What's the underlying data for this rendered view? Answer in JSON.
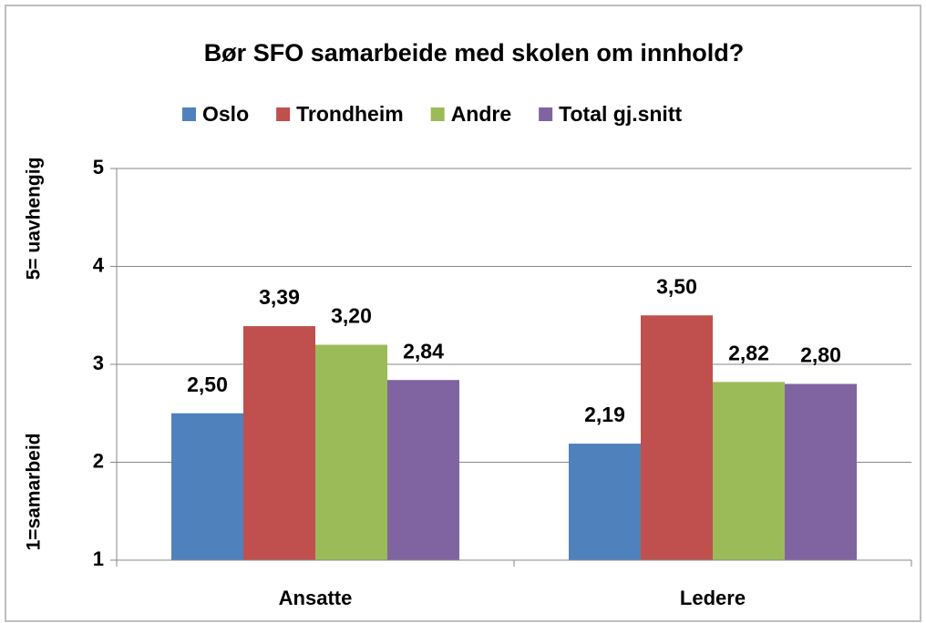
{
  "chart_data": {
    "type": "bar",
    "title": "Bør SFO samarbeide med skolen om innhold?",
    "ylabel_top": "5= uavhengig",
    "ylabel_bottom": "1=samarbeid",
    "categories": [
      "Ansatte",
      "Ledere"
    ],
    "series": [
      {
        "name": "Oslo",
        "color": "#4f81bd",
        "values": [
          2.5,
          2.19
        ],
        "value_labels": [
          "2,50",
          "2,19"
        ]
      },
      {
        "name": "Trondheim",
        "color": "#c0504d",
        "values": [
          3.39,
          3.5
        ],
        "value_labels": [
          "3,39",
          "3,50"
        ]
      },
      {
        "name": "Andre",
        "color": "#9bbb59",
        "values": [
          3.2,
          2.82
        ],
        "value_labels": [
          "3,20",
          "2,82"
        ]
      },
      {
        "name": "Total gj.snitt",
        "color": "#8064a2",
        "values": [
          2.84,
          2.8
        ],
        "value_labels": [
          "2,84",
          "2,80"
        ]
      }
    ],
    "ylim": [
      1,
      5
    ],
    "yticks": [
      1,
      2,
      3,
      4,
      5
    ],
    "grid": true,
    "legend": "top"
  }
}
